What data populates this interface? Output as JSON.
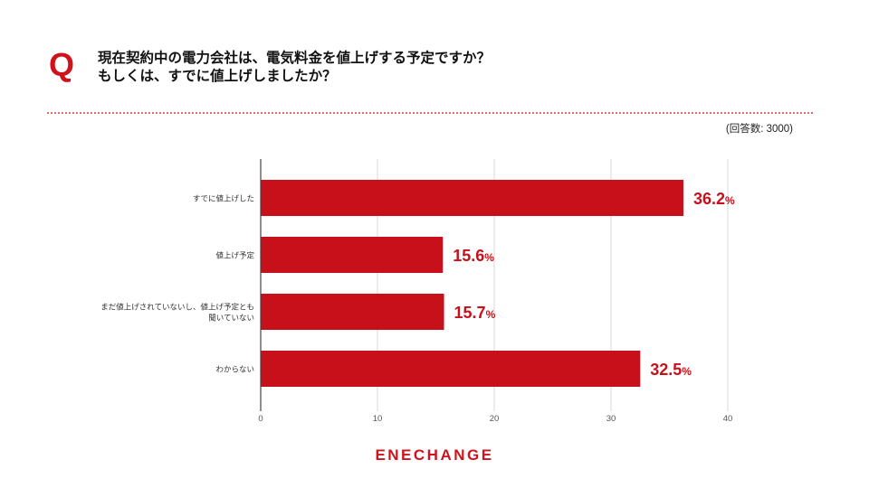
{
  "question": {
    "mark": "Q",
    "line1": "現在契約中の電力会社は、電気料金を値上げする予定ですか？",
    "line2": "もしくは、すでに値上げしましたか？"
  },
  "respondents": "(回答数: 3000)",
  "logo": "ENECHANGE",
  "colors": {
    "bar": "#c8101a",
    "accent": "#d0121b",
    "value_label": "#c8101a"
  },
  "chart_data": {
    "type": "bar",
    "orientation": "horizontal",
    "categories": [
      [
        "すでに値上げした"
      ],
      [
        "値上げ予定"
      ],
      [
        "まだ値上げされていないし、値上げ予定とも",
        "聞いていない"
      ],
      [
        "わからない"
      ]
    ],
    "values": [
      36.2,
      15.6,
      15.7,
      32.5
    ],
    "value_suffix": "%",
    "xlim": [
      0,
      40
    ],
    "xticks": [
      0,
      10,
      20,
      30,
      40
    ],
    "grid": true
  }
}
